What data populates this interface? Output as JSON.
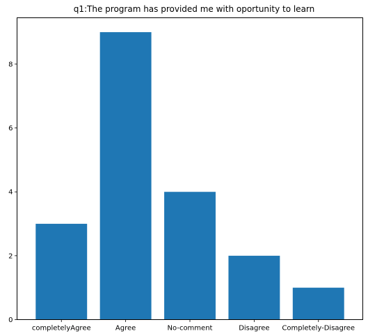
{
  "chart_data": {
    "type": "bar",
    "title": "q1:The program has provided me with oportunity to learn",
    "xlabel": "",
    "ylabel": "",
    "categories": [
      "completelyAgree",
      "Agree",
      "No-comment",
      "Disagree",
      "Completely-Disagree"
    ],
    "values": [
      3,
      9,
      4,
      2,
      1
    ],
    "ylim": [
      0,
      9.45
    ],
    "yticks": [
      0,
      2,
      4,
      6,
      8
    ],
    "grid": false,
    "legend": "none",
    "bar_color": "#1f77b4"
  }
}
